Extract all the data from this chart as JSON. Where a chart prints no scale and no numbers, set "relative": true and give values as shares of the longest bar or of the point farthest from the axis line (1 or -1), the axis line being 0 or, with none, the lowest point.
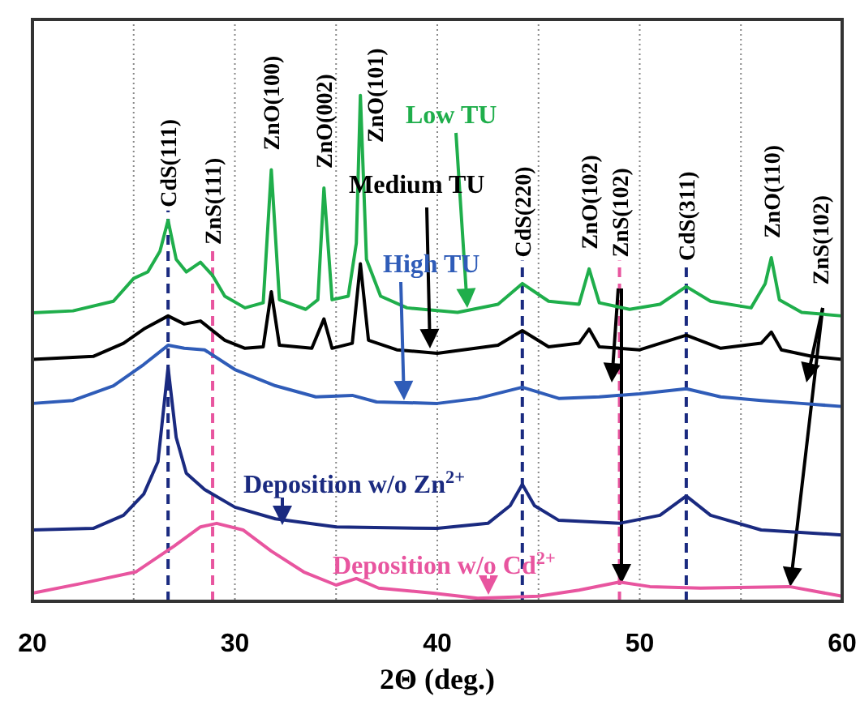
{
  "chart_data": {
    "type": "line",
    "relative": true,
    "xlabel": "2Θ (deg.)",
    "xlim": [
      20,
      60
    ],
    "xticks": [
      20,
      {
        "value": 25,
        "label": null
      },
      30,
      {
        "value": 35,
        "label": null
      },
      40,
      {
        "value": 45,
        "label": null
      },
      50,
      {
        "value": 55,
        "label": null
      },
      60
    ],
    "grid": "x",
    "legend": false,
    "marker": "none",
    "line_style": "solid",
    "series": [
      {
        "name": "Low TU",
        "color": "#1fae4b",
        "x": [
          20,
          22,
          24,
          25,
          25.7,
          26.3,
          26.7,
          27.1,
          27.6,
          28.3,
          28.9,
          29.5,
          30.5,
          31.4,
          31.8,
          32.2,
          33.5,
          34.1,
          34.4,
          34.8,
          35.6,
          36.0,
          36.2,
          36.5,
          37.2,
          38.5,
          41,
          43,
          44.2,
          45.5,
          47,
          47.5,
          48,
          49.5,
          51,
          52.3,
          53.5,
          55.5,
          56.2,
          56.5,
          56.9,
          58,
          60
        ],
        "values": [
          0.57,
          0.574,
          0.593,
          0.638,
          0.651,
          0.692,
          0.753,
          0.676,
          0.651,
          0.67,
          0.644,
          0.603,
          0.58,
          0.59,
          0.853,
          0.596,
          0.577,
          0.596,
          0.817,
          0.596,
          0.603,
          0.708,
          1,
          0.676,
          0.603,
          0.58,
          0.571,
          0.587,
          0.628,
          0.593,
          0.587,
          0.657,
          0.59,
          0.577,
          0.587,
          0.622,
          0.593,
          0.58,
          0.628,
          0.679,
          0.596,
          0.571,
          0.564
        ]
      },
      {
        "name": "Medium TU",
        "color": "#000000",
        "x": [
          20,
          23,
          24.5,
          25.5,
          26.7,
          27.5,
          28.3,
          29.5,
          30.5,
          31.4,
          31.8,
          32.2,
          33.8,
          34.4,
          34.8,
          35.8,
          36.2,
          36.6,
          38,
          40,
          43,
          44.2,
          45.5,
          47,
          47.5,
          48,
          50,
          52.3,
          54,
          56,
          56.5,
          57,
          58.5,
          60
        ],
        "values": [
          0.478,
          0.484,
          0.51,
          0.538,
          0.564,
          0.548,
          0.554,
          0.516,
          0.5,
          0.503,
          0.612,
          0.506,
          0.5,
          0.558,
          0.5,
          0.51,
          0.667,
          0.516,
          0.497,
          0.49,
          0.506,
          0.535,
          0.503,
          0.51,
          0.538,
          0.503,
          0.497,
          0.526,
          0.5,
          0.51,
          0.532,
          0.497,
          0.484,
          0.478
        ]
      },
      {
        "name": "High TU",
        "color": "#2f5cb8",
        "x": [
          20,
          22,
          24,
          25.5,
          26.7,
          27.5,
          28.5,
          30,
          32,
          34,
          35.8,
          37,
          40,
          42,
          44.2,
          46,
          48,
          50,
          52.3,
          54,
          56,
          58,
          60
        ],
        "values": [
          0.391,
          0.397,
          0.426,
          0.468,
          0.506,
          0.5,
          0.497,
          0.458,
          0.426,
          0.404,
          0.407,
          0.394,
          0.391,
          0.401,
          0.423,
          0.401,
          0.404,
          0.41,
          0.42,
          0.404,
          0.397,
          0.391,
          0.385
        ]
      },
      {
        "name": "Deposition w/o Zn$^{2+}$",
        "color": "#1a2a80",
        "x": [
          20,
          23,
          24.5,
          25.5,
          26.2,
          26.7,
          27.1,
          27.6,
          28.5,
          30,
          32,
          35,
          40,
          42.5,
          43.6,
          44.2,
          44.8,
          46,
          49,
          51,
          52.3,
          53.5,
          56,
          60
        ],
        "values": [
          0.141,
          0.144,
          0.17,
          0.212,
          0.276,
          0.462,
          0.324,
          0.253,
          0.221,
          0.186,
          0.163,
          0.147,
          0.144,
          0.154,
          0.189,
          0.231,
          0.189,
          0.16,
          0.154,
          0.17,
          0.208,
          0.17,
          0.141,
          0.131
        ]
      },
      {
        "name": "Deposition w/o Cd$^{2+}$",
        "color": "#e8559f",
        "x": [
          20,
          22.4,
          25.1,
          27,
          28.3,
          29.1,
          30.4,
          31.8,
          33.4,
          35,
          36,
          37.1,
          39.8,
          42,
          45,
          47,
          49,
          50.5,
          53,
          57.4,
          60
        ],
        "values": [
          0.016,
          0.035,
          0.058,
          0.109,
          0.147,
          0.154,
          0.141,
          0.099,
          0.058,
          0.032,
          0.045,
          0.026,
          0.016,
          0.006,
          0.01,
          0.022,
          0.038,
          0.029,
          0.026,
          0.029,
          0.01
        ]
      }
    ],
    "ref_lines": [
      {
        "axis": "x",
        "value": 26.7,
        "color": "#1a2a80",
        "line_style": "dashed"
      },
      {
        "axis": "x",
        "value": 28.9,
        "color": "#e8559f",
        "line_style": "dashed"
      },
      {
        "axis": "x",
        "value": 44.2,
        "color": "#1a2a80",
        "line_style": "dashed"
      },
      {
        "axis": "x",
        "value": 49,
        "color": "#e8559f",
        "line_style": "dashed"
      },
      {
        "axis": "x",
        "value": 52.3,
        "color": "#1a2a80",
        "line_style": "dashed"
      }
    ],
    "annotations": [
      {
        "text": "CdS(111)",
        "x": 26.7,
        "y": 0.766
      },
      {
        "text": "ZnS(111)",
        "x": 28.9,
        "y": 0.692
      },
      {
        "text": "ZnO(100)",
        "x": 31.8,
        "y": 0.853
      },
      {
        "text": "ZnO(002)",
        "x": 34.4,
        "y": 0.817
      },
      {
        "text": "ZnO(101)",
        "x": 36.2,
        "y": 1
      },
      {
        "text": "CdS(220)",
        "x": 44.2,
        "y": 0.667
      },
      {
        "text": "ZnO(102)",
        "x": 47.5,
        "y": 0.657
      },
      {
        "text": "ZnS(102)",
        "x": 49,
        "y": 0.667
      },
      {
        "text": "CdS(311)",
        "x": 52.3,
        "y": 0.66
      },
      {
        "text": "ZnO(110)",
        "x": 56.5,
        "y": 0.679
      },
      {
        "text": "ZnS(102)",
        "x": 58.9,
        "y": 0.587
      }
    ]
  }
}
